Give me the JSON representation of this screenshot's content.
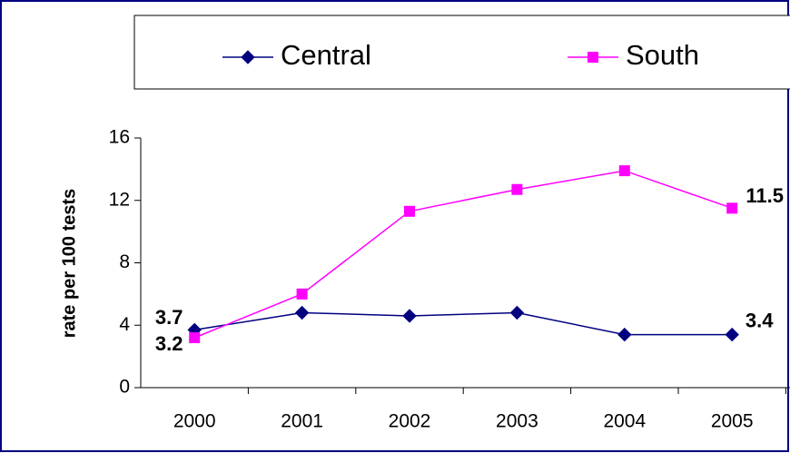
{
  "chart_data": {
    "type": "line",
    "y_label": "rate per 100 tests",
    "categories": [
      "2000",
      "2001",
      "2002",
      "2003",
      "2004",
      "2005"
    ],
    "series": [
      {
        "name": "Central",
        "color": "#000080",
        "marker": "diamond",
        "values": [
          3.7,
          4.8,
          4.6,
          4.8,
          3.4,
          3.4
        ],
        "value_labels": [
          "3.7",
          null,
          null,
          null,
          null,
          "3.4"
        ]
      },
      {
        "name": "South",
        "color": "#ff00ff",
        "marker": "square",
        "values": [
          3.2,
          6.0,
          11.3,
          12.7,
          13.9,
          11.5
        ],
        "value_labels": [
          "3.2",
          null,
          null,
          null,
          null,
          "11.5"
        ]
      }
    ],
    "ylim": [
      0,
      16
    ],
    "yticks": [
      0,
      4,
      8,
      12,
      16
    ],
    "grid": false,
    "legend": "top"
  }
}
